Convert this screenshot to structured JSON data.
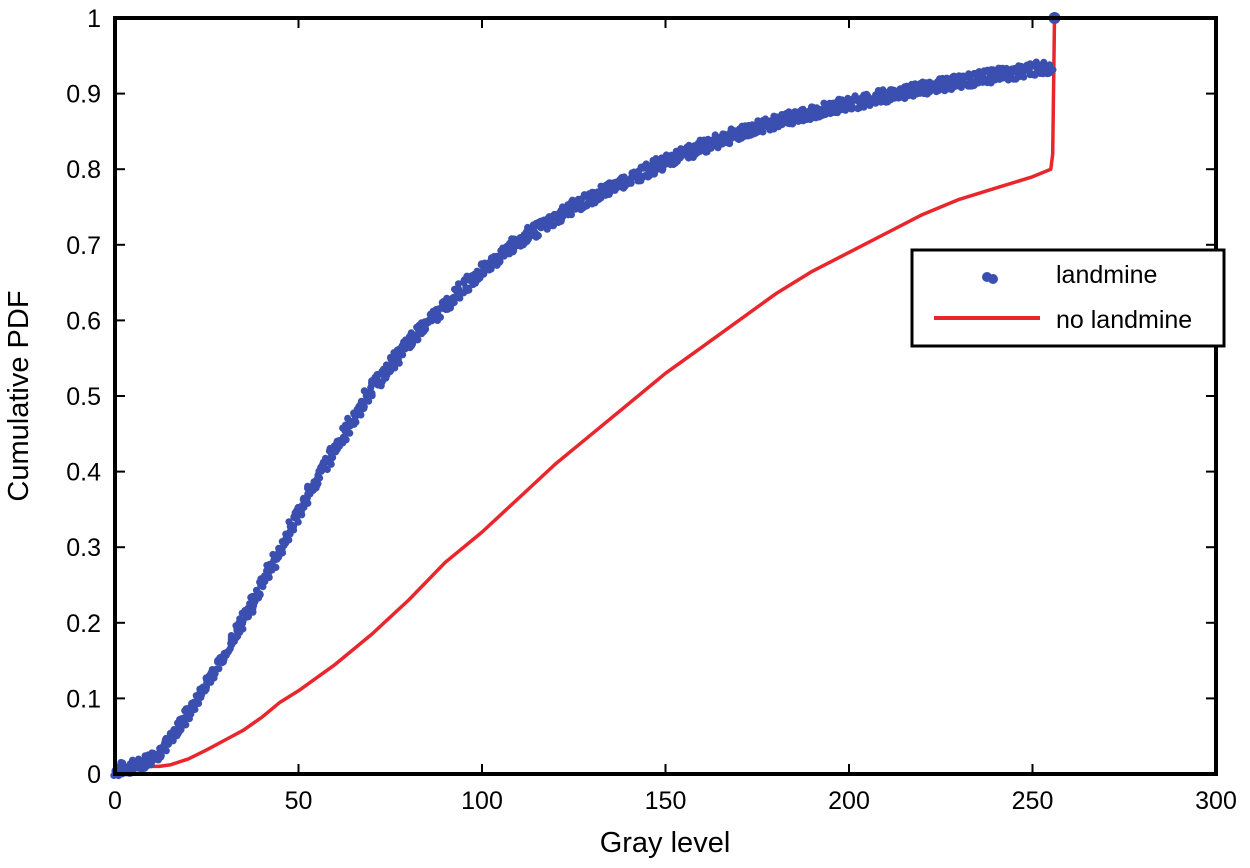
{
  "chart_data": {
    "type": "scatter",
    "title": "",
    "xlabel": "Gray level",
    "ylabel": "Cumulative PDF",
    "xlim": [
      0,
      300
    ],
    "ylim": [
      0,
      1
    ],
    "xticks": [
      "0",
      "50",
      "100",
      "150",
      "200",
      "250",
      "300"
    ],
    "yticks": [
      "0",
      "0.1",
      "0.2",
      "0.3",
      "0.4",
      "0.5",
      "0.6",
      "0.7",
      "0.8",
      "0.9",
      "1"
    ],
    "grid": false,
    "legend_position": "right",
    "series": [
      {
        "name": "landmine",
        "style": "markers",
        "color": "#3a4fb0",
        "x": [
          0,
          5,
          10,
          15,
          20,
          25,
          30,
          35,
          40,
          45,
          50,
          55,
          60,
          65,
          70,
          75,
          80,
          85,
          90,
          95,
          100,
          105,
          110,
          115,
          120,
          125,
          130,
          135,
          140,
          145,
          150,
          160,
          170,
          180,
          190,
          200,
          210,
          220,
          230,
          240,
          250,
          255,
          256
        ],
        "y": [
          0.005,
          0.01,
          0.02,
          0.045,
          0.08,
          0.12,
          0.16,
          0.205,
          0.25,
          0.295,
          0.345,
          0.39,
          0.43,
          0.47,
          0.51,
          0.54,
          0.57,
          0.595,
          0.62,
          0.645,
          0.665,
          0.685,
          0.705,
          0.72,
          0.735,
          0.75,
          0.762,
          0.775,
          0.787,
          0.798,
          0.81,
          0.83,
          0.848,
          0.862,
          0.875,
          0.887,
          0.897,
          0.907,
          0.916,
          0.924,
          0.932,
          0.935,
          1.0
        ]
      },
      {
        "name": "no landmine",
        "style": "line",
        "color": "#e8262b",
        "x": [
          0,
          12,
          15,
          20,
          25,
          30,
          35,
          40,
          45,
          50,
          60,
          70,
          80,
          90,
          100,
          110,
          120,
          130,
          140,
          150,
          160,
          170,
          180,
          190,
          200,
          210,
          220,
          230,
          240,
          250,
          255,
          255.5,
          256
        ],
        "y": [
          0.01,
          0.01,
          0.012,
          0.02,
          0.032,
          0.045,
          0.058,
          0.075,
          0.095,
          0.11,
          0.145,
          0.185,
          0.23,
          0.28,
          0.32,
          0.365,
          0.41,
          0.45,
          0.49,
          0.53,
          0.565,
          0.6,
          0.635,
          0.665,
          0.69,
          0.715,
          0.74,
          0.76,
          0.775,
          0.79,
          0.8,
          0.82,
          1.0
        ]
      }
    ]
  }
}
